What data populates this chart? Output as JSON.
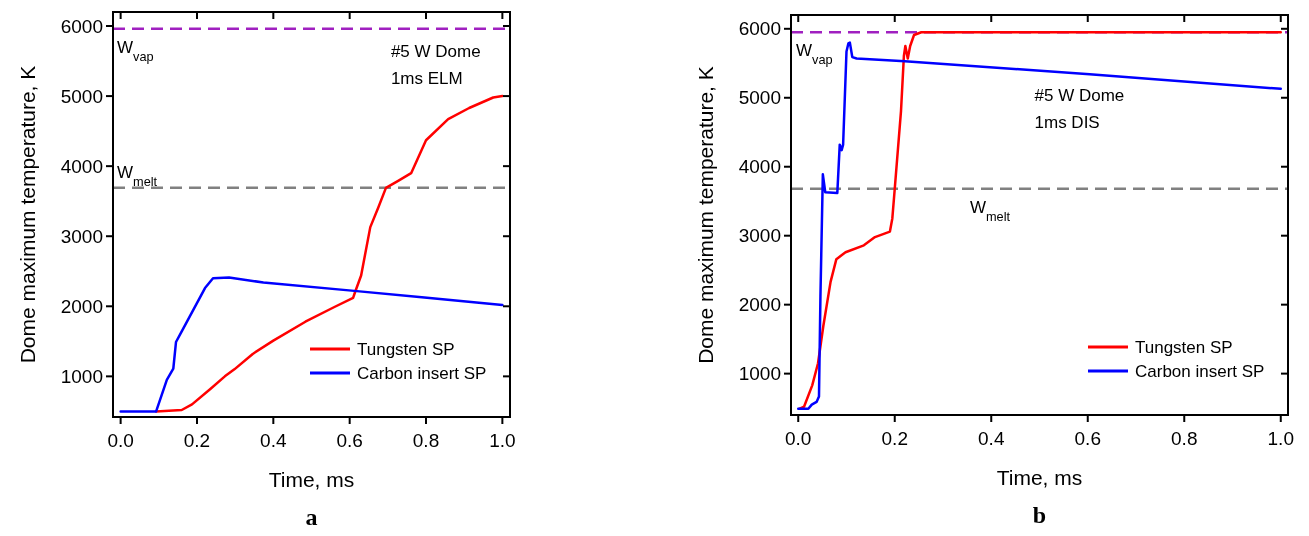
{
  "chart_data": [
    {
      "type": "line",
      "title": "a",
      "xlabel": "Time,  ms",
      "ylabel": "Dome maximum temperature,  K",
      "xlim": [
        -0.02,
        1.02
      ],
      "ylim": [
        420,
        6200
      ],
      "xticks": [
        {
          "value": 0,
          "label": "0.0"
        },
        {
          "value": 0.2,
          "label": "0.2"
        },
        {
          "value": 0.4,
          "label": "0.4"
        },
        {
          "value": 0.6,
          "label": "0.6"
        },
        {
          "value": 0.8,
          "label": "0.8"
        },
        {
          "value": 1,
          "label": "1.0"
        }
      ],
      "yticks": [
        1000,
        2000,
        3000,
        4000,
        5000,
        6000
      ],
      "legend": "bottom right",
      "annotations": [
        "#5 W Dome",
        "1ms ELM"
      ],
      "ref_lines": [
        {
          "axis": "y",
          "value": 5960,
          "label": "W$_{vap}$",
          "color": "#a020c0",
          "line_style": "dashed"
        },
        {
          "axis": "y",
          "value": 3690,
          "label": "W$_{melt}$",
          "color": "#808080",
          "line_style": "dashed"
        }
      ],
      "series": [
        {
          "name": "Tungsten SP",
          "color": "#ff0000",
          "x": [
            0.093,
            0.16,
            0.187,
            0.235,
            0.273,
            0.298,
            0.346,
            0.4,
            0.484,
            0.56,
            0.609,
            0.614,
            0.63,
            0.654,
            0.675,
            0.695,
            0.727,
            0.761,
            0.8,
            0.858,
            0.913,
            0.976,
            1.0
          ],
          "values": [
            500,
            520,
            600,
            820,
            1000,
            1100,
            1320,
            1510,
            1780,
            1990,
            2120,
            2200,
            2440,
            3130,
            3410,
            3690,
            3790,
            3900,
            4370,
            4670,
            4830,
            4980,
            5000
          ]
        },
        {
          "name": "Carbon insert SP",
          "color": "#0000ff",
          "x": [
            0,
            0.093,
            0.121,
            0.138,
            0.145,
            0.159,
            0.221,
            0.242,
            0.284,
            0.374,
            0.612,
            0.789,
            1.0
          ],
          "values": [
            500,
            500,
            950,
            1110,
            1490,
            1630,
            2260,
            2400,
            2410,
            2340,
            2220,
            2130,
            2020
          ]
        }
      ]
    },
    {
      "type": "line",
      "title": "b",
      "xlabel": "Time,  ms",
      "ylabel": "Dome maximum temperature,  K",
      "xlim": [
        -0.015,
        1.015
      ],
      "ylim": [
        400,
        6200
      ],
      "xticks": [
        {
          "value": 0,
          "label": "0.0"
        },
        {
          "value": 0.2,
          "label": "0.2"
        },
        {
          "value": 0.4,
          "label": "0.4"
        },
        {
          "value": 0.6,
          "label": "0.6"
        },
        {
          "value": 0.8,
          "label": "0.8"
        },
        {
          "value": 1,
          "label": "1.0"
        }
      ],
      "yticks": [
        1000,
        2000,
        3000,
        4000,
        5000,
        6000
      ],
      "legend": "bottom right",
      "annotations": [
        "#5 W Dome",
        "1ms DIS"
      ],
      "ref_lines": [
        {
          "axis": "y",
          "value": 5950,
          "label": "W$_{vap}$",
          "color": "#a020c0",
          "line_style": "dashed"
        },
        {
          "axis": "y",
          "value": 3680,
          "label": "W$_{melt}$",
          "color": "#808080",
          "line_style": "dashed"
        }
      ],
      "series": [
        {
          "name": "Tungsten SP",
          "color": "#ff0000",
          "x": [
            0.002,
            0.012,
            0.029,
            0.041,
            0.052,
            0.067,
            0.079,
            0.098,
            0.136,
            0.159,
            0.19,
            0.195,
            0.2,
            0.213,
            0.219,
            0.222,
            0.227,
            0.232,
            0.24,
            0.255,
            1.0
          ],
          "values": [
            490,
            520,
            830,
            1150,
            1690,
            2330,
            2660,
            2760,
            2860,
            2980,
            3060,
            3250,
            3680,
            4810,
            5610,
            5750,
            5570,
            5750,
            5910,
            5950,
            5950
          ]
        },
        {
          "name": "Carbon insert SP",
          "color": "#0000ff",
          "x": [
            0,
            0.021,
            0.028,
            0.038,
            0.043,
            0.046,
            0.051,
            0.056,
            0.081,
            0.086,
            0.09,
            0.093,
            0.1,
            0.104,
            0.107,
            0.112,
            0.121,
            0.221,
            0.604,
            1.0
          ],
          "values": [
            490,
            490,
            550,
            590,
            670,
            2120,
            3890,
            3630,
            3620,
            4320,
            4240,
            4320,
            5670,
            5790,
            5800,
            5590,
            5570,
            5530,
            5340,
            5130
          ]
        }
      ]
    }
  ]
}
